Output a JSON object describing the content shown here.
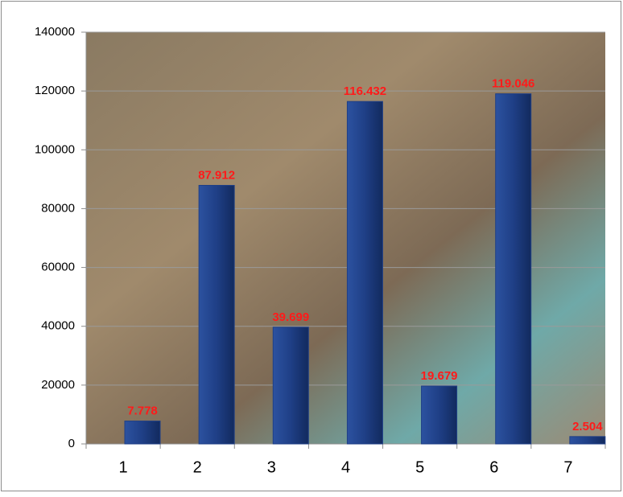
{
  "chart_data": {
    "type": "bar",
    "categories": [
      "1",
      "2",
      "3",
      "4",
      "5",
      "6",
      "7"
    ],
    "values": [
      7778,
      87912,
      39699,
      116432,
      19679,
      119046,
      2504
    ],
    "value_labels": [
      "7.778",
      "87.912",
      "39.699",
      "116.432",
      "19.679",
      "119.046",
      "2.504"
    ],
    "color": "#1f3f86",
    "label_color": "#ff1a1a",
    "ylim": [
      0,
      140000
    ],
    "yticks": [
      0,
      20000,
      40000,
      60000,
      80000,
      100000,
      120000,
      140000
    ],
    "grid": true
  }
}
